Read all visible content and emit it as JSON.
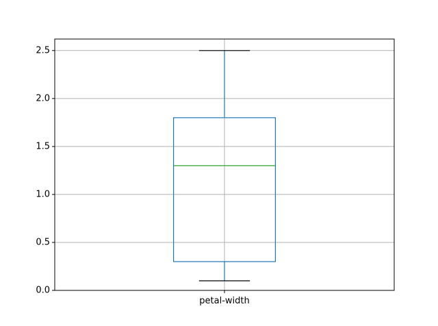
{
  "chart_data": {
    "type": "box",
    "categories": [
      "petal-width"
    ],
    "series": [
      {
        "whisker_low": 0.1,
        "q1": 0.3,
        "median": 1.3,
        "q3": 1.8,
        "whisker_high": 2.5
      }
    ],
    "ylim": [
      -0.0,
      2.62
    ],
    "yticks": [
      0.0,
      0.5,
      1.0,
      1.5,
      2.0,
      2.5
    ],
    "ytick_labels": [
      "0.0",
      "0.5",
      "1.0",
      "1.5",
      "2.0",
      "2.5"
    ],
    "grid": true,
    "colors": {
      "box": "#1f77b4",
      "whisker": "#1f77b4",
      "cap": "#000000",
      "median": "#2ca02c",
      "grid": "#b0b0b0",
      "axes": "#000000"
    }
  }
}
